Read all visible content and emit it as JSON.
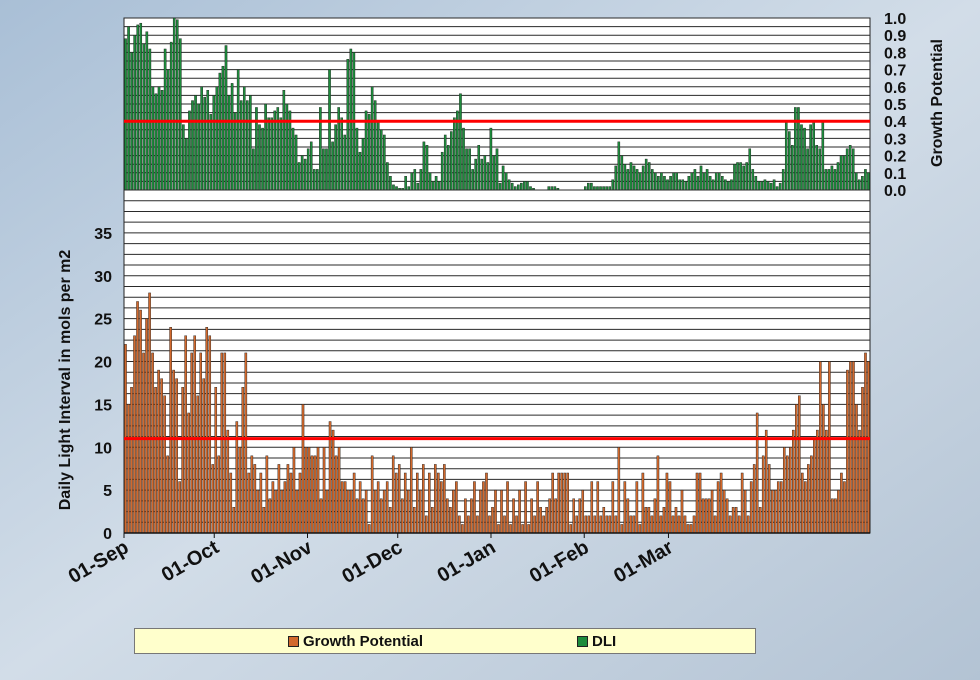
{
  "colors": {
    "growth": "#d2692d",
    "dli": "#1d8c3c",
    "ref_line": "#ff0000",
    "plot_bg": "#ffffff",
    "grid": "#2a2a2a",
    "legend_bg": "#ffffcc"
  },
  "legend": {
    "items": [
      {
        "label": "Growth Potential",
        "color": "#d2692d"
      },
      {
        "label": "DLI",
        "color": "#1d8c3c"
      }
    ]
  },
  "chart_data": [
    {
      "type": "bar",
      "panel": "top",
      "ylabel": "Growth Potential",
      "ylim": [
        0,
        1.0
      ],
      "yticks": [
        "0.0",
        "0.1",
        "0.2",
        "0.3",
        "0.4",
        "0.5",
        "0.6",
        "0.7",
        "0.8",
        "0.9",
        "1.0"
      ],
      "y_axis_side": "right",
      "grid": true,
      "reference_line": 0.4,
      "series": [
        {
          "name": "DLI",
          "color": "#1d8c3c",
          "values": [
            0.88,
            0.95,
            0.8,
            0.9,
            0.96,
            0.97,
            0.85,
            0.92,
            0.82,
            0.6,
            0.56,
            0.6,
            0.58,
            0.82,
            0.7,
            0.86,
            1.0,
            0.99,
            0.88,
            0.38,
            0.3,
            0.46,
            0.52,
            0.55,
            0.5,
            0.6,
            0.54,
            0.58,
            0.44,
            0.55,
            0.6,
            0.68,
            0.72,
            0.84,
            0.55,
            0.62,
            0.45,
            0.7,
            0.52,
            0.6,
            0.52,
            0.55,
            0.24,
            0.48,
            0.38,
            0.36,
            0.5,
            0.42,
            0.42,
            0.46,
            0.48,
            0.42,
            0.58,
            0.5,
            0.46,
            0.36,
            0.32,
            0.16,
            0.2,
            0.18,
            0.24,
            0.28,
            0.12,
            0.12,
            0.48,
            0.24,
            0.24,
            0.7,
            0.28,
            0.38,
            0.48,
            0.42,
            0.32,
            0.76,
            0.82,
            0.8,
            0.36,
            0.22,
            0.3,
            0.46,
            0.44,
            0.6,
            0.52,
            0.4,
            0.35,
            0.32,
            0.16,
            0.08,
            0.03,
            0.02,
            0.01,
            0.01,
            0.08,
            0.02,
            0.1,
            0.12,
            0.04,
            0.12,
            0.28,
            0.26,
            0.1,
            0.05,
            0.08,
            0.05,
            0.22,
            0.32,
            0.26,
            0.34,
            0.42,
            0.46,
            0.56,
            0.36,
            0.24,
            0.24,
            0.12,
            0.18,
            0.26,
            0.18,
            0.2,
            0.16,
            0.36,
            0.2,
            0.24,
            0.04,
            0.14,
            0.1,
            0.06,
            0.04,
            0.02,
            0.03,
            0.04,
            0.05,
            0.05,
            0.02,
            0.01,
            0.0,
            0.0,
            0.0,
            0.0,
            0.02,
            0.02,
            0.02,
            0.01,
            0.0,
            0.0,
            0.0,
            0.0,
            0.0,
            0.0,
            0.0,
            0.0,
            0.02,
            0.04,
            0.04,
            0.02,
            0.02,
            0.02,
            0.02,
            0.02,
            0.02,
            0.06,
            0.14,
            0.28,
            0.2,
            0.15,
            0.12,
            0.16,
            0.14,
            0.12,
            0.1,
            0.14,
            0.18,
            0.16,
            0.12,
            0.1,
            0.08,
            0.1,
            0.08,
            0.06,
            0.08,
            0.1,
            0.1,
            0.06,
            0.06,
            0.05,
            0.08,
            0.1,
            0.12,
            0.08,
            0.14,
            0.1,
            0.12,
            0.08,
            0.06,
            0.1,
            0.1,
            0.08,
            0.06,
            0.05,
            0.06,
            0.15,
            0.16,
            0.16,
            0.14,
            0.16,
            0.24,
            0.12,
            0.08,
            0.05,
            0.05,
            0.06,
            0.05,
            0.04,
            0.06,
            0.02,
            0.04,
            0.12,
            0.4,
            0.34,
            0.26,
            0.48,
            0.48,
            0.38,
            0.36,
            0.24,
            0.38,
            0.4,
            0.26,
            0.24,
            0.4,
            0.12,
            0.12,
            0.14,
            0.12,
            0.16,
            0.2,
            0.2,
            0.24,
            0.26,
            0.24,
            0.1,
            0.06,
            0.08,
            0.12,
            0.1
          ]
        }
      ]
    },
    {
      "type": "bar",
      "panel": "bottom",
      "ylabel": "Daily  Light Interval in mols per m2",
      "ylim": [
        0,
        40
      ],
      "yticks": [
        "0",
        "5",
        "10",
        "15",
        "20",
        "25",
        "30",
        "35"
      ],
      "y_axis_side": "left",
      "grid": true,
      "reference_line": 11,
      "x_ticks": [
        "01-Sep",
        "01-Oct",
        "01-Nov",
        "01-Dec",
        "01-Jan",
        "01-Feb",
        "01-Mar"
      ],
      "series": [
        {
          "name": "Growth Potential",
          "color": "#d2692d",
          "values": [
            22,
            15,
            17,
            23,
            27,
            26,
            21,
            25,
            28,
            21,
            17,
            19,
            18,
            16,
            9,
            24,
            19,
            18,
            6,
            17,
            23,
            14,
            21,
            23,
            16,
            21,
            18,
            24,
            23,
            8,
            17,
            9,
            21,
            21,
            12,
            7,
            3,
            13,
            10,
            17,
            21,
            7,
            9,
            8,
            5,
            7,
            3,
            9,
            4,
            6,
            5,
            8,
            5,
            6,
            8,
            7,
            10,
            5,
            7,
            15,
            10,
            10,
            9,
            9,
            10,
            4,
            10,
            5,
            13,
            12,
            9,
            10,
            6,
            6,
            5,
            5,
            7,
            4,
            6,
            4,
            5,
            1,
            9,
            5,
            6,
            4,
            5,
            6,
            3,
            9,
            7,
            8,
            4,
            7,
            5,
            10,
            3,
            7,
            5,
            8,
            2,
            7,
            3,
            8,
            7,
            6,
            8,
            4,
            3,
            5,
            6,
            2,
            1,
            4,
            2,
            4,
            6,
            2,
            5,
            6,
            7,
            2,
            3,
            5,
            1,
            5,
            2,
            6,
            1,
            4,
            2,
            5,
            1,
            6,
            1,
            4,
            2,
            6,
            3,
            2,
            3,
            4,
            7,
            4,
            7,
            7,
            7,
            7,
            1,
            4,
            2,
            4,
            5,
            2,
            2,
            6,
            2,
            6,
            2,
            3,
            2,
            2,
            6,
            2,
            10,
            1,
            6,
            4,
            2,
            2,
            6,
            1,
            7,
            3,
            3,
            2,
            4,
            9,
            2,
            3,
            7,
            6,
            2,
            3,
            2,
            5,
            2,
            1,
            1,
            2,
            7,
            7,
            4,
            4,
            4,
            5,
            2,
            6,
            7,
            5,
            4,
            2,
            3,
            3,
            2,
            7,
            5,
            2,
            6,
            8,
            14,
            3,
            9,
            12,
            8,
            5,
            5,
            6,
            6,
            10,
            9,
            10,
            12,
            15,
            16,
            7,
            6,
            8,
            9,
            11,
            12,
            20,
            15,
            12,
            20,
            4,
            4,
            5,
            7,
            6,
            19,
            20,
            20,
            15,
            12,
            17,
            21,
            20
          ]
        }
      ]
    }
  ]
}
